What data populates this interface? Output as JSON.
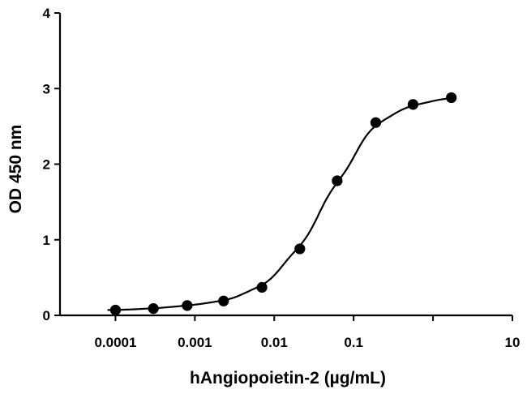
{
  "chart_data": {
    "type": "scatter",
    "title": "",
    "xlabel": "hAngiopoietin-2 (µg/mL)",
    "ylabel": "OD 450 nm",
    "xscale": "log",
    "xlim": [
      2e-05,
      10
    ],
    "ylim": [
      0,
      4
    ],
    "x_ticks": [
      0.0001,
      0.001,
      0.01,
      0.1,
      10
    ],
    "x_tick_labels": [
      "0.0001",
      "0.001",
      "0.01",
      "0.1",
      "10"
    ],
    "x_minor_ticks": [
      1
    ],
    "y_ticks": [
      0,
      1,
      2,
      3,
      4
    ],
    "y_tick_labels": [
      "0",
      "1",
      "2",
      "3",
      "4"
    ],
    "grid": false,
    "legend": "none",
    "series": [
      {
        "x": [
          0.0001,
          0.0003,
          0.0008,
          0.0023,
          0.007,
          0.021,
          0.062,
          0.19,
          0.56,
          1.7
        ],
        "y": [
          0.07,
          0.09,
          0.13,
          0.19,
          0.37,
          0.88,
          1.78,
          2.55,
          2.79,
          2.88
        ],
        "fit_line": true,
        "marker": "filled-circle",
        "color": "#000000"
      }
    ]
  }
}
